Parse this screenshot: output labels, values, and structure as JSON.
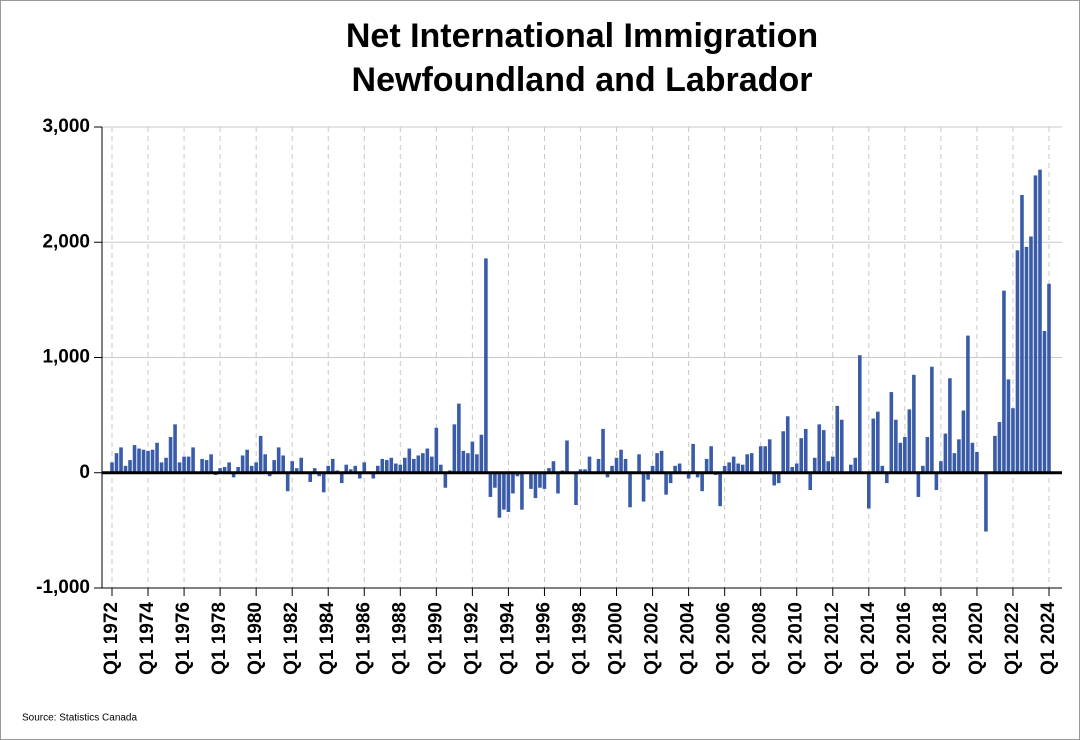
{
  "chart_data": {
    "type": "bar",
    "title": "Net International Immigration",
    "subtitle": "Newfoundland and Labrador",
    "source": "Source: Statistics Canada",
    "color": "#3a5ca8",
    "ylim": [
      -1000,
      3000
    ],
    "yticks": [
      {
        "value": -1000,
        "label": "-1,000"
      },
      0,
      {
        "value": 1000,
        "label": "1,000"
      },
      {
        "value": 2000,
        "label": "2,000"
      },
      {
        "value": 3000,
        "label": "3,000"
      }
    ],
    "grid": true,
    "categories": [
      "Q1 1972",
      null,
      null,
      null,
      null,
      null,
      null,
      null,
      "Q1 1974",
      null,
      null,
      null,
      null,
      null,
      null,
      null,
      "Q1 1976",
      null,
      null,
      null,
      null,
      null,
      null,
      null,
      "Q1 1978",
      null,
      null,
      null,
      null,
      null,
      null,
      null,
      "Q1 1980",
      null,
      null,
      null,
      null,
      null,
      null,
      null,
      "Q1 1982",
      null,
      null,
      null,
      null,
      null,
      null,
      null,
      "Q1 1984",
      null,
      null,
      null,
      null,
      null,
      null,
      null,
      "Q1 1986",
      null,
      null,
      null,
      null,
      null,
      null,
      null,
      "Q1 1988",
      null,
      null,
      null,
      null,
      null,
      null,
      null,
      "Q1 1990",
      null,
      null,
      null,
      null,
      null,
      null,
      null,
      "Q1 1992",
      null,
      null,
      null,
      null,
      null,
      null,
      null,
      "Q1 1994",
      null,
      null,
      null,
      null,
      null,
      null,
      null,
      "Q1 1996",
      null,
      null,
      null,
      null,
      null,
      null,
      null,
      "Q1 1998",
      null,
      null,
      null,
      null,
      null,
      null,
      null,
      "Q1 2000",
      null,
      null,
      null,
      null,
      null,
      null,
      null,
      "Q1 2002",
      null,
      null,
      null,
      null,
      null,
      null,
      null,
      "Q1 2004",
      null,
      null,
      null,
      null,
      null,
      null,
      null,
      "Q1 2006",
      null,
      null,
      null,
      null,
      null,
      null,
      null,
      "Q1 2008",
      null,
      null,
      null,
      null,
      null,
      null,
      null,
      "Q1 2010",
      null,
      null,
      null,
      null,
      null,
      null,
      null,
      "Q1 2012",
      null,
      null,
      null,
      null,
      null,
      null,
      null,
      "Q1 2014",
      null,
      null,
      null,
      null,
      null,
      null,
      null,
      "Q1 2016",
      null,
      null,
      null,
      null,
      null,
      null,
      null,
      "Q1 2018",
      null,
      null,
      null,
      null,
      null,
      null,
      null,
      "Q1 2020",
      null,
      null,
      null,
      null,
      null,
      null,
      null,
      "Q1 2022",
      null,
      null,
      null,
      null,
      null,
      null,
      null,
      "Q1 2024"
    ],
    "values": [
      90,
      170,
      220,
      60,
      110,
      240,
      210,
      200,
      190,
      200,
      260,
      90,
      130,
      310,
      420,
      90,
      140,
      140,
      220,
      10,
      120,
      110,
      160,
      -20,
      40,
      50,
      90,
      -40,
      50,
      150,
      200,
      60,
      90,
      320,
      160,
      -30,
      110,
      220,
      150,
      -160,
      100,
      40,
      130,
      0,
      -80,
      40,
      -30,
      -170,
      60,
      120,
      20,
      -90,
      70,
      30,
      60,
      -50,
      90,
      0,
      -50,
      60,
      120,
      110,
      130,
      80,
      70,
      130,
      210,
      120,
      150,
      170,
      210,
      140,
      390,
      70,
      -130,
      20,
      420,
      600,
      190,
      170,
      270,
      160,
      330,
      1860,
      -210,
      -130,
      -390,
      -320,
      -340,
      -180,
      -30,
      -320,
      0,
      -140,
      -220,
      -130,
      -140,
      40,
      100,
      -180,
      20,
      280,
      0,
      -280,
      30,
      30,
      140,
      0,
      120,
      380,
      -40,
      60,
      130,
      200,
      120,
      -300,
      0,
      160,
      -250,
      -60,
      60,
      170,
      190,
      -190,
      -90,
      60,
      80,
      0,
      -50,
      250,
      -40,
      -160,
      120,
      230,
      -20,
      -290,
      60,
      90,
      140,
      80,
      70,
      160,
      170,
      0,
      230,
      230,
      290,
      -110,
      -90,
      360,
      490,
      50,
      80,
      300,
      380,
      -150,
      130,
      420,
      370,
      100,
      140,
      580,
      460,
      0,
      70,
      130,
      1020,
      0,
      -310,
      470,
      530,
      60,
      -90,
      700,
      460,
      260,
      310,
      550,
      850,
      -210,
      60,
      310,
      920,
      -150,
      100,
      340,
      820,
      170,
      290,
      540,
      1190,
      260,
      180,
      0,
      -510,
      0,
      320,
      440,
      1580,
      810,
      560,
      1930,
      2410,
      1960,
      2050,
      2580,
      2630,
      1230,
      1640
    ]
  }
}
